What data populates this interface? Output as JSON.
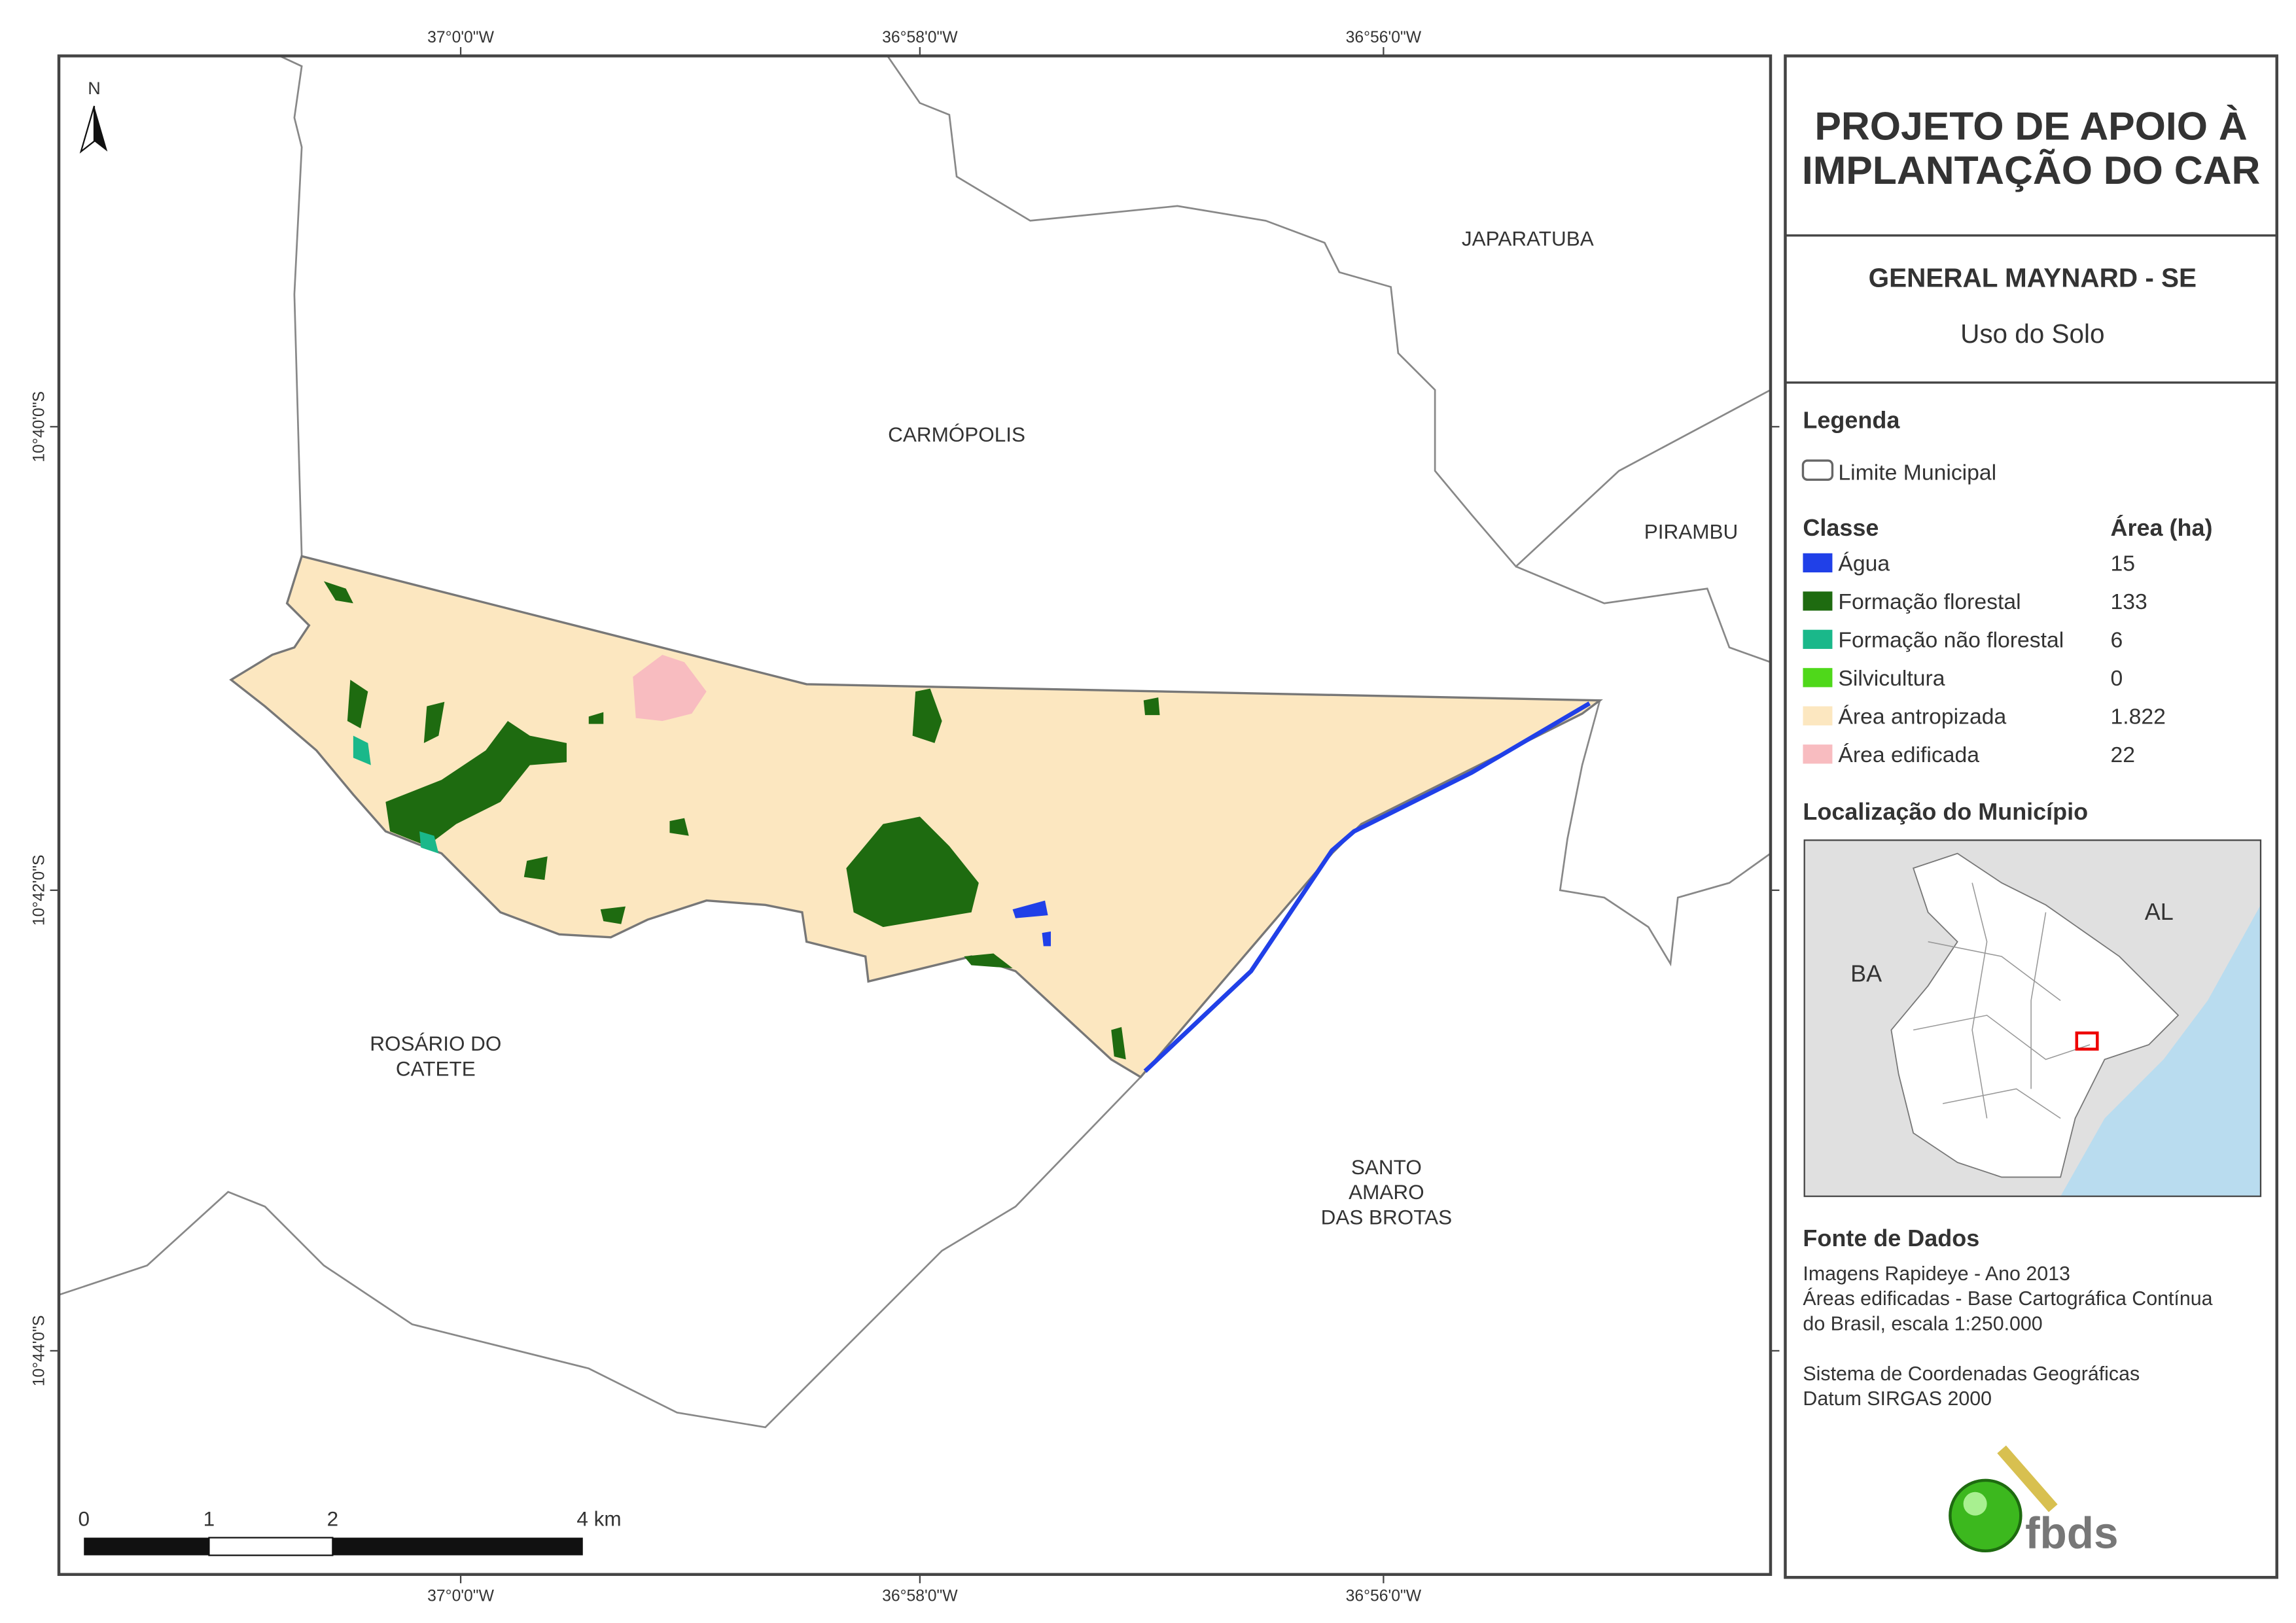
{
  "map": {
    "north": "N",
    "lon_labels": [
      "37°0'0\"W",
      "36°58'0\"W",
      "36°56'0\"W"
    ],
    "lat_labels": [
      "10°40'0\"S",
      "10°42'0\"S",
      "10°44'0\"S"
    ],
    "places": [
      {
        "lines": [
          "JAPARATUBA"
        ]
      },
      {
        "lines": [
          "CARMÓPOLIS"
        ]
      },
      {
        "lines": [
          "PIRAMBU"
        ]
      },
      {
        "lines": [
          "ROSÁRIO DO",
          "CATETE"
        ]
      },
      {
        "lines": [
          "SANTO",
          "AMARO",
          "DAS BROTAS"
        ]
      }
    ],
    "scale_labels": [
      "0",
      "1",
      "2",
      "4 km"
    ]
  },
  "panel": {
    "title": [
      "PROJETO DE APOIO À",
      "IMPLANTAÇÃO DO CAR"
    ],
    "subtitle": "GENERAL MAYNARD - SE",
    "theme": "Uso do Solo",
    "legend": {
      "heading": "Legenda",
      "boundary": "Limite Municipal",
      "class_header": "Classe",
      "area_header": "Área (ha)",
      "classes": [
        {
          "name": "Água",
          "area": "15",
          "color": "#2040e8"
        },
        {
          "name": "Formação florestal",
          "area": "133",
          "color": "#1e6b10"
        },
        {
          "name": "Formação não florestal",
          "area": "6",
          "color": "#1ab88a"
        },
        {
          "name": "Silvicultura",
          "area": "0",
          "color": "#4fd81a"
        },
        {
          "name": "Área antropizada",
          "area": "1.822",
          "color": "#fce7c0"
        },
        {
          "name": "Área edificada",
          "area": "22",
          "color": "#f8bcc0"
        }
      ]
    },
    "location": {
      "heading": "Localização do Município",
      "labels": [
        "BA",
        "AL"
      ]
    },
    "sources": {
      "heading": "Fonte de Dados",
      "lines": [
        "Imagens Rapideye - Ano 2013",
        "Áreas edificadas - Base Cartográfica Contínua",
        "do Brasil, escala 1:250.000",
        "",
        "Sistema de Coordenadas Geográficas",
        "Datum SIRGAS 2000"
      ]
    },
    "logo": "fbds"
  }
}
